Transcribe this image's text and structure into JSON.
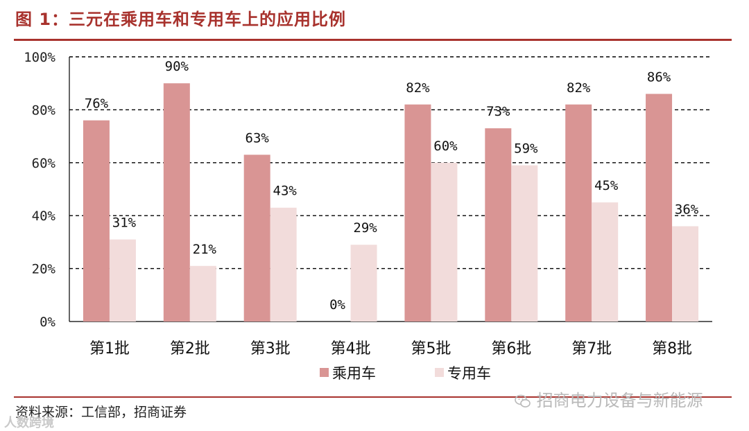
{
  "header": {
    "title": "图 1：三元在乘用车和专用车上的应用比例"
  },
  "footer": {
    "source": "资料来源：工信部，招商证券"
  },
  "watermarks": {
    "left": "人数跨境",
    "right": "招商电力设备与新能源"
  },
  "colors": {
    "accent": "#a8322d",
    "series1": "#d99594",
    "series2": "#f2dcdb"
  },
  "chart_data": {
    "type": "bar",
    "title": "",
    "xlabel": "",
    "ylabel": "",
    "ylim": [
      0,
      100
    ],
    "yticks": [
      "0%",
      "20%",
      "40%",
      "60%",
      "80%",
      "100%"
    ],
    "categories": [
      "第1批",
      "第2批",
      "第3批",
      "第4批",
      "第5批",
      "第6批",
      "第7批",
      "第8批"
    ],
    "series": [
      {
        "name": "乘用车",
        "values": [
          76,
          90,
          63,
          0,
          82,
          73,
          82,
          86
        ],
        "labels": [
          "76%",
          "90%",
          "63%",
          "0%",
          "82%",
          "73%",
          "82%",
          "86%"
        ]
      },
      {
        "name": "专用车",
        "values": [
          31,
          21,
          43,
          29,
          60,
          59,
          45,
          36
        ],
        "labels": [
          "31%",
          "21%",
          "43%",
          "29%",
          "60%",
          "59%",
          "45%",
          "36%"
        ]
      }
    ],
    "grid": true,
    "legend": "bottom-center"
  }
}
